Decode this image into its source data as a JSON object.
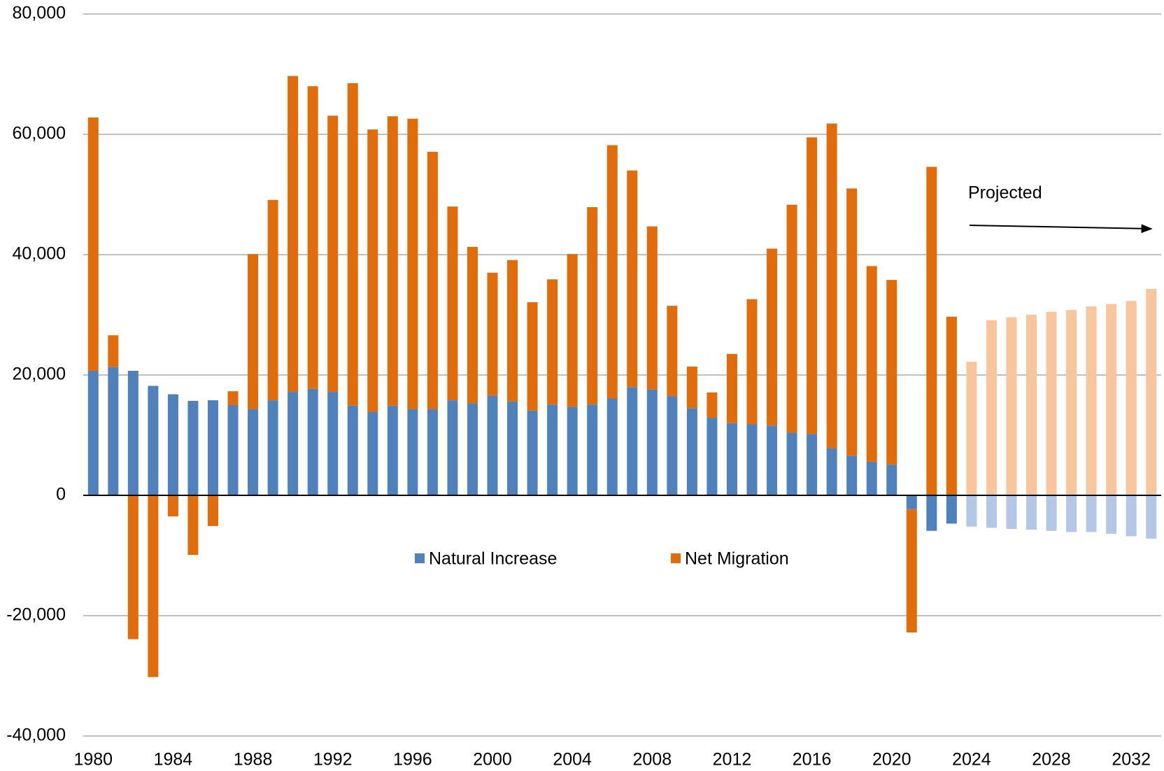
{
  "chart_data": {
    "type": "stacked-bar",
    "x": [
      1980,
      1981,
      1982,
      1983,
      1984,
      1985,
      1986,
      1987,
      1988,
      1989,
      1990,
      1991,
      1992,
      1993,
      1994,
      1995,
      1996,
      1997,
      1998,
      1999,
      2000,
      2001,
      2002,
      2003,
      2004,
      2005,
      2006,
      2007,
      2008,
      2009,
      2010,
      2011,
      2012,
      2013,
      2014,
      2015,
      2016,
      2017,
      2018,
      2019,
      2020,
      2021,
      2022,
      2023,
      2024,
      2025,
      2026,
      2027,
      2028,
      2029,
      2030,
      2031,
      2032,
      2033
    ],
    "series": [
      {
        "name": "Natural Increase",
        "color": "#4f81bd",
        "projected_color": "#b4c7e7",
        "values": [
          20700,
          21300,
          20700,
          18200,
          16800,
          15700,
          15800,
          15000,
          14300,
          15800,
          17200,
          17700,
          17200,
          14900,
          13900,
          14900,
          14300,
          14300,
          15800,
          15300,
          16600,
          15600,
          14100,
          15100,
          14700,
          15100,
          16100,
          18000,
          17600,
          16500,
          14500,
          12900,
          12000,
          11800,
          11600,
          10400,
          10200,
          7800,
          6600,
          5600,
          5100,
          -2300,
          -5900,
          -4700,
          -5200,
          -5400,
          -5600,
          -5700,
          -5900,
          -6100,
          -6100,
          -6400,
          -6800,
          -7200
        ]
      },
      {
        "name": "Net Migration",
        "color": "#e36c0a",
        "projected_color": "#f8c59c",
        "values": [
          42100,
          5300,
          -23900,
          -30200,
          -3500,
          -9900,
          -5100,
          2300,
          25800,
          33300,
          52500,
          50300,
          45900,
          53600,
          46900,
          48100,
          48300,
          42800,
          32200,
          26000,
          20400,
          23500,
          18000,
          20800,
          25400,
          32800,
          42100,
          36000,
          27100,
          15000,
          6900,
          4200,
          11500,
          20800,
          29400,
          37900,
          49300,
          54000,
          44400,
          32500,
          30700,
          -20500,
          54600,
          29700,
          22200,
          29100,
          29600,
          30000,
          30500,
          30800,
          31400,
          31800,
          32300,
          34300
        ]
      }
    ],
    "projected": {
      "label": "Projected",
      "from": 2024
    },
    "xlim": [
      1979.5,
      2033.5
    ],
    "xticks": [
      1980,
      1984,
      1988,
      1992,
      1996,
      2000,
      2004,
      2008,
      2012,
      2016,
      2020,
      2024,
      2028,
      2032
    ],
    "ylim": [
      -40000,
      80000
    ],
    "yticks": [
      {
        "value": -40000,
        "label": "-40,000"
      },
      {
        "value": -20000,
        "label": "-20,000"
      },
      0,
      {
        "value": 20000,
        "label": "20,000"
      },
      {
        "value": 40000,
        "label": "40,000"
      },
      {
        "value": 60000,
        "label": "60,000"
      },
      {
        "value": 80000,
        "label": "80,000"
      }
    ],
    "grid": true
  }
}
